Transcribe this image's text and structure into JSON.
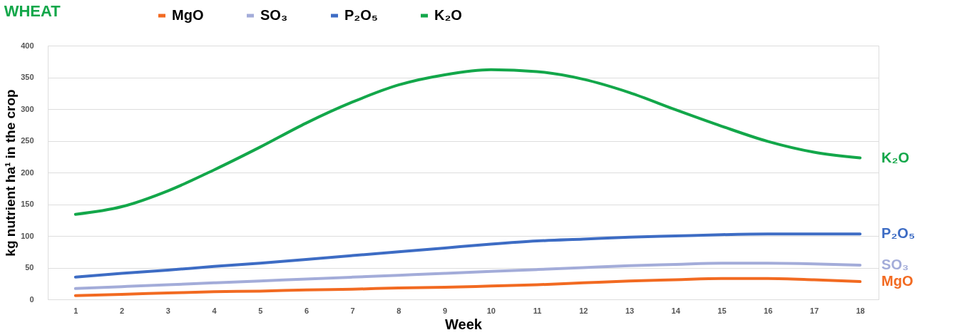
{
  "chart_data": {
    "type": "line",
    "title": "WHEAT",
    "xlabel": "Week",
    "ylabel": "kg nutrient ha¹ in the crop",
    "x": [
      1,
      2,
      3,
      4,
      5,
      6,
      7,
      8,
      9,
      10,
      11,
      12,
      13,
      14,
      15,
      16,
      17,
      18
    ],
    "series": [
      {
        "name": "MgO",
        "color": "#f26a21",
        "values": [
          6,
          8,
          10,
          12,
          13,
          15,
          16,
          18,
          19,
          21,
          23,
          26,
          29,
          31,
          33,
          33,
          31,
          28
        ]
      },
      {
        "name": "SO₃",
        "color": "#a3acd9",
        "values": [
          17,
          20,
          23,
          26,
          29,
          32,
          35,
          38,
          41,
          44,
          47,
          50,
          53,
          55,
          57,
          57,
          56,
          54
        ]
      },
      {
        "name": "P₂O₅",
        "color": "#3d6cc4",
        "values": [
          35,
          41,
          46,
          52,
          57,
          63,
          69,
          75,
          81,
          87,
          92,
          95,
          98,
          100,
          102,
          103,
          103,
          103
        ]
      },
      {
        "name": "K₂O",
        "color": "#13a74a",
        "values": [
          134,
          146,
          171,
          204,
          240,
          278,
          311,
          338,
          354,
          362,
          359,
          347,
          326,
          299,
          273,
          249,
          232,
          223
        ]
      }
    ],
    "xlim": [
      0.4,
      18.4
    ],
    "xticks": [
      1,
      2,
      3,
      4,
      5,
      6,
      7,
      8,
      9,
      10,
      11,
      12,
      13,
      14,
      15,
      16,
      17,
      18
    ],
    "ylim": [
      0,
      400
    ],
    "yticks": [
      0,
      50,
      100,
      150,
      200,
      250,
      300,
      350,
      400
    ],
    "grid": "y",
    "legend": "top",
    "marker": "none",
    "line_style": "solid"
  }
}
